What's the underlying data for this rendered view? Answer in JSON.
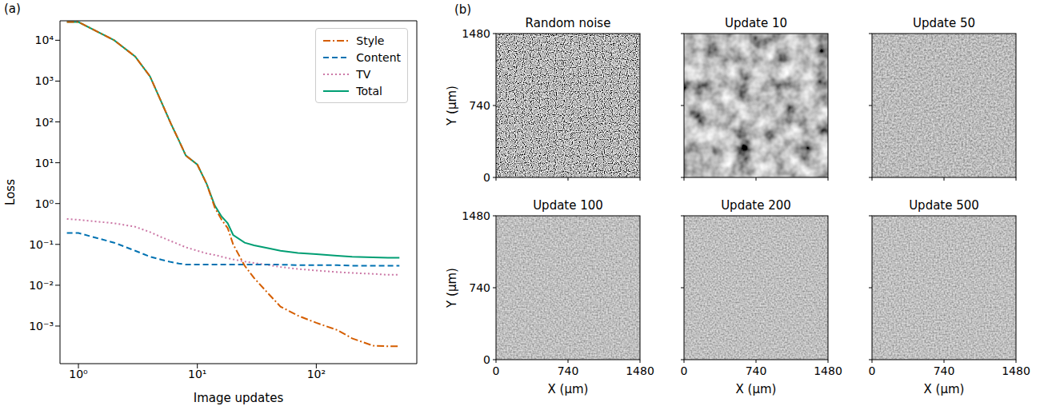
{
  "chart_data": [
    {
      "annotation": "(a)",
      "type": "line",
      "log": true,
      "grid": false,
      "legend": "upper right",
      "marker": "none",
      "xlabel": "Image updates",
      "ylabel": "Loss",
      "xlim": [
        0.7,
        700
      ],
      "xticks": [
        {
          "value": 1,
          "label": "10⁰"
        },
        {
          "value": 10,
          "label": "10¹"
        },
        {
          "value": 100,
          "label": "10²"
        }
      ],
      "ylim": [
        0.00012,
        30000
      ],
      "yticks": [
        {
          "value": 0.001,
          "label": "10⁻³"
        },
        {
          "value": 0.01,
          "label": "10⁻²"
        },
        {
          "value": 0.1,
          "label": "10⁻¹"
        },
        {
          "value": 1,
          "label": "10⁰"
        },
        {
          "value": 10,
          "label": "10¹"
        },
        {
          "value": 100,
          "label": "10²"
        },
        {
          "value": 1000,
          "label": "10³"
        },
        {
          "value": 10000,
          "label": "10⁴"
        }
      ],
      "x": [
        0.8,
        1,
        2,
        3,
        4,
        5,
        6,
        7,
        8,
        10,
        12,
        14,
        16,
        18,
        20,
        25,
        30,
        40,
        50,
        70,
        100,
        150,
        200,
        300,
        400,
        500
      ],
      "series": [
        {
          "name": "Style",
          "color": "#d55e00",
          "line_style": "dashdot",
          "values": [
            28000,
            28000,
            10000,
            4000,
            1300,
            300,
            90,
            35,
            15,
            9,
            3,
            0.8,
            0.4,
            0.25,
            0.1,
            0.03,
            0.015,
            0.006,
            0.003,
            0.0018,
            0.0012,
            0.0008,
            0.0005,
            0.00033,
            0.00032,
            0.00032
          ]
        },
        {
          "name": "Content",
          "color": "#0072b2",
          "line_style": "dashed",
          "values": [
            0.19,
            0.19,
            0.11,
            0.07,
            0.05,
            0.042,
            0.037,
            0.034,
            0.032,
            0.032,
            0.032,
            0.032,
            0.032,
            0.032,
            0.032,
            0.032,
            0.032,
            0.032,
            0.032,
            0.031,
            0.031,
            0.031,
            0.03,
            0.03,
            0.03,
            0.03
          ]
        },
        {
          "name": "TV",
          "color": "#cc79a7",
          "line_style": "dotted",
          "values": [
            0.42,
            0.4,
            0.33,
            0.27,
            0.2,
            0.15,
            0.12,
            0.1,
            0.085,
            0.07,
            0.06,
            0.055,
            0.05,
            0.046,
            0.043,
            0.038,
            0.035,
            0.031,
            0.028,
            0.025,
            0.023,
            0.021,
            0.02,
            0.019,
            0.018,
            0.018
          ]
        },
        {
          "name": "Total",
          "color": "#009e73",
          "line_style": "solid",
          "values": [
            28000,
            28000,
            10000,
            4000,
            1300,
            300,
            90,
            35,
            15,
            9,
            3,
            0.9,
            0.48,
            0.33,
            0.17,
            0.11,
            0.095,
            0.08,
            0.07,
            0.062,
            0.058,
            0.053,
            0.05,
            0.048,
            0.047,
            0.047
          ]
        }
      ]
    },
    {
      "annotation": "(b)",
      "type": "image",
      "title": "Random noise",
      "ylabel": "Y (μm)",
      "tick_labels": "y",
      "xlim": [
        0,
        1480
      ],
      "xticks": [
        0,
        740,
        1480
      ],
      "ylim": [
        0,
        1480
      ],
      "yticks": [
        0,
        740,
        1480
      ]
    },
    {
      "type": "image",
      "title": "Update 10",
      "tick_labels": false,
      "xlim": [
        0,
        1480
      ],
      "xticks": [
        0,
        740,
        1480
      ],
      "ylim": [
        0,
        1480
      ],
      "yticks": [
        0,
        740,
        1480
      ]
    },
    {
      "type": "image",
      "title": "Update 50",
      "tick_labels": false,
      "xlim": [
        0,
        1480
      ],
      "xticks": [
        0,
        740,
        1480
      ],
      "ylim": [
        0,
        1480
      ],
      "yticks": [
        0,
        740,
        1480
      ]
    },
    {
      "type": "image",
      "title": "Update 100",
      "xlabel": "X (μm)",
      "ylabel": "Y (μm)",
      "tick_labels": true,
      "xlim": [
        0,
        1480
      ],
      "xticks": [
        0,
        740,
        1480
      ],
      "ylim": [
        0,
        1480
      ],
      "yticks": [
        0,
        740,
        1480
      ]
    },
    {
      "type": "image",
      "title": "Update 200",
      "xlabel": "X (μm)",
      "tick_labels": "x",
      "xlim": [
        0,
        1480
      ],
      "xticks": [
        0,
        740,
        1480
      ],
      "ylim": [
        0,
        1480
      ],
      "yticks": [
        0,
        740,
        1480
      ]
    },
    {
      "type": "image",
      "title": "Update 500",
      "xlabel": "X (μm)",
      "tick_labels": "x",
      "xlim": [
        0,
        1480
      ],
      "xticks": [
        0,
        740,
        1480
      ],
      "ylim": [
        0,
        1480
      ],
      "yticks": [
        0,
        740,
        1480
      ]
    }
  ]
}
